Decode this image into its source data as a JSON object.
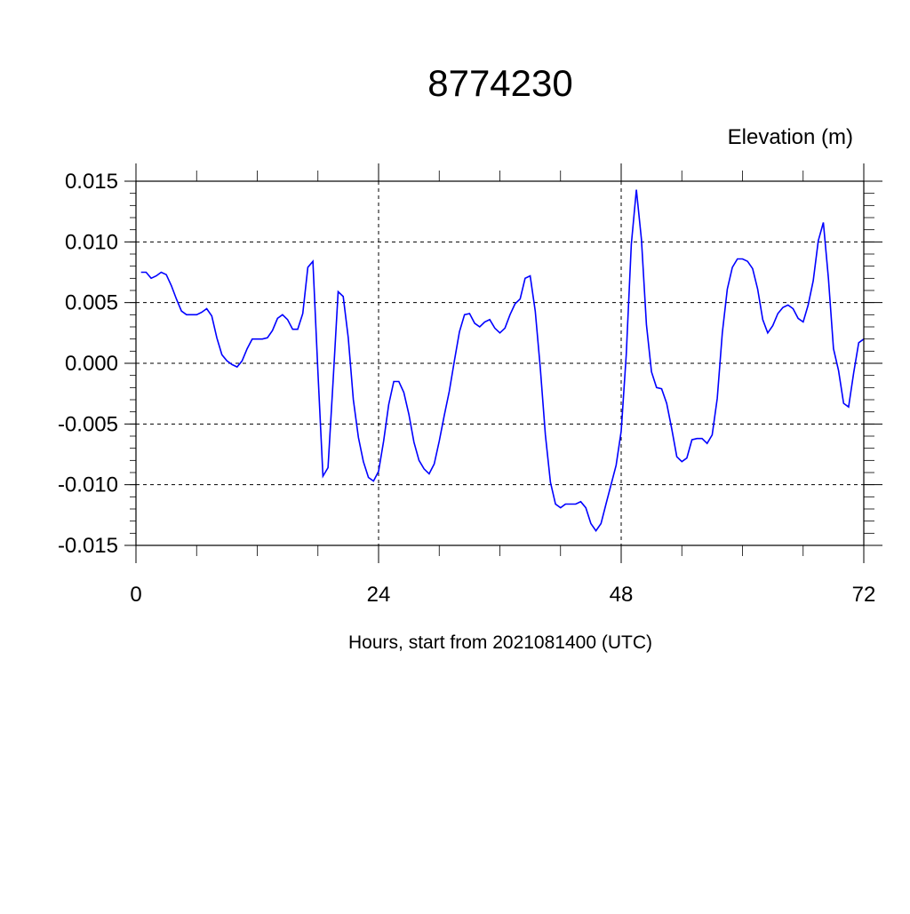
{
  "chart_data": {
    "type": "line",
    "title": "8774230",
    "ylabel": "Elevation (m)",
    "xlabel": "Hours, start from 2021081400 (UTC)",
    "xlim": [
      0,
      72
    ],
    "ylim": [
      -0.015,
      0.015
    ],
    "x_step": 0.5,
    "x_start": 0.5,
    "xticks": [
      0,
      24,
      48,
      72
    ],
    "xtick_labels": [
      "0",
      "24",
      "48",
      "72"
    ],
    "yticks": [
      -0.015,
      -0.01,
      -0.005,
      0.0,
      0.005,
      0.01,
      0.015
    ],
    "ytick_labels": [
      "-0.015",
      "-0.010",
      "-0.005",
      "0.000",
      "0.005",
      "0.010",
      "0.015"
    ],
    "grid": "dashed",
    "line_color": "#0000ff",
    "values": [
      0.0075,
      0.0075,
      0.007,
      0.0072,
      0.0075,
      0.0073,
      0.0064,
      0.0053,
      0.0043,
      0.004,
      0.004,
      0.004,
      0.0042,
      0.0045,
      0.0039,
      0.0021,
      0.0007,
      0.0002,
      -0.0001,
      -0.0003,
      0.0002,
      0.0012,
      0.002,
      0.002,
      0.002,
      0.0021,
      0.0027,
      0.0037,
      0.004,
      0.0036,
      0.0028,
      0.0028,
      0.0041,
      0.0079,
      0.0084,
      -0.0008,
      -0.0093,
      -0.0086,
      -0.0015,
      0.0059,
      0.0055,
      0.0021,
      -0.003,
      -0.0061,
      -0.0081,
      -0.0094,
      -0.0097,
      -0.0089,
      -0.0064,
      -0.0034,
      -0.0015,
      -0.0015,
      -0.0024,
      -0.0042,
      -0.0065,
      -0.008,
      -0.0087,
      -0.0091,
      -0.0083,
      -0.0064,
      -0.0043,
      -0.0023,
      0.0002,
      0.0026,
      0.004,
      0.0041,
      0.0033,
      0.003,
      0.0034,
      0.0036,
      0.0029,
      0.0025,
      0.0029,
      0.004,
      0.0049,
      0.0053,
      0.007,
      0.0072,
      0.0043,
      -0.0004,
      -0.0059,
      -0.0098,
      -0.0116,
      -0.0119,
      -0.0116,
      -0.0116,
      -0.0116,
      -0.0114,
      -0.0119,
      -0.0132,
      -0.0138,
      -0.0132,
      -0.0116,
      -0.01,
      -0.0084,
      -0.0056,
      0.0007,
      0.0098,
      0.0143,
      0.0102,
      0.0032,
      -0.0007,
      -0.002,
      -0.0021,
      -0.0033,
      -0.0054,
      -0.0077,
      -0.0081,
      -0.0078,
      -0.0063,
      -0.0062,
      -0.0062,
      -0.0066,
      -0.0059,
      -0.0029,
      0.0025,
      0.0061,
      0.0079,
      0.0086,
      0.0086,
      0.0084,
      0.0078,
      0.0061,
      0.0036,
      0.0025,
      0.0031,
      0.0041,
      0.0046,
      0.0048,
      0.0045,
      0.0037,
      0.0034,
      0.0048,
      0.0068,
      0.0101,
      0.0116,
      0.007,
      0.0012,
      -0.0006,
      -0.0033,
      -0.0036,
      -0.0008,
      0.0017,
      0.002
    ]
  }
}
